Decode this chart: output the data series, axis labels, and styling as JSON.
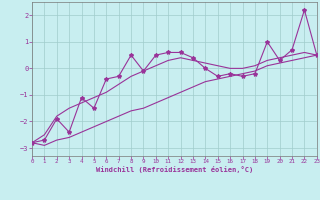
{
  "xlabel": "Windchill (Refroidissement éolien,°C)",
  "background_color": "#c8eef0",
  "grid_color": "#a0cccc",
  "line_color": "#993399",
  "x_data": [
    0,
    1,
    2,
    3,
    4,
    5,
    6,
    7,
    8,
    9,
    10,
    11,
    12,
    13,
    14,
    15,
    16,
    17,
    18,
    19,
    20,
    21,
    22,
    23
  ],
  "y_main": [
    -2.8,
    -2.7,
    -1.9,
    -2.4,
    -1.1,
    -1.5,
    -0.4,
    -0.3,
    0.5,
    -0.1,
    0.5,
    0.6,
    0.6,
    0.4,
    0.0,
    -0.3,
    -0.2,
    -0.3,
    -0.2,
    1.0,
    0.3,
    0.7,
    2.2,
    0.5
  ],
  "y_upper": [
    -2.8,
    -2.5,
    -1.8,
    -1.5,
    -1.3,
    -1.1,
    -0.9,
    -0.6,
    -0.3,
    -0.1,
    0.1,
    0.3,
    0.4,
    0.3,
    0.2,
    0.1,
    0.0,
    0.0,
    0.1,
    0.3,
    0.4,
    0.5,
    0.6,
    0.5
  ],
  "y_lower": [
    -2.8,
    -2.9,
    -2.7,
    -2.6,
    -2.4,
    -2.2,
    -2.0,
    -1.8,
    -1.6,
    -1.5,
    -1.3,
    -1.1,
    -0.9,
    -0.7,
    -0.5,
    -0.4,
    -0.3,
    -0.2,
    -0.1,
    0.1,
    0.2,
    0.3,
    0.4,
    0.5
  ],
  "ylim": [
    -3.3,
    2.5
  ],
  "xlim": [
    0,
    23
  ],
  "yticks": [
    -3,
    -2,
    -1,
    0,
    1,
    2
  ],
  "xticks": [
    0,
    1,
    2,
    3,
    4,
    5,
    6,
    7,
    8,
    9,
    10,
    11,
    12,
    13,
    14,
    15,
    16,
    17,
    18,
    19,
    20,
    21,
    22,
    23
  ]
}
